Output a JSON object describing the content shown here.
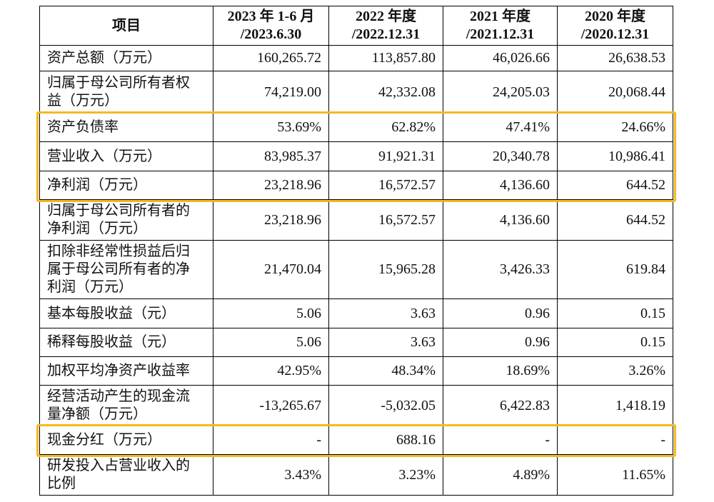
{
  "table": {
    "header": [
      [
        "项目"
      ],
      [
        "2023 年 1-6 月",
        "/2023.6.30"
      ],
      [
        "2022 年度",
        "/2022.12.31"
      ],
      [
        "2021 年度",
        "/2021.12.31"
      ],
      [
        "2020 年度",
        "/2020.12.31"
      ]
    ],
    "rows": [
      [
        "资产总额（万元）",
        "160,265.72",
        "113,857.80",
        "46,026.66",
        "26,638.53"
      ],
      [
        "归属于母公司所有者权益（万元）",
        "74,219.00",
        "42,332.08",
        "24,205.03",
        "20,068.44"
      ],
      [
        "资产负债率",
        "53.69%",
        "62.82%",
        "47.41%",
        "24.66%"
      ],
      [
        "营业收入（万元）",
        "83,985.37",
        "91,921.31",
        "20,340.78",
        "10,986.41"
      ],
      [
        "净利润（万元）",
        "23,218.96",
        "16,572.57",
        "4,136.60",
        "644.52"
      ],
      [
        "归属于母公司所有者的净利润（万元）",
        "23,218.96",
        "16,572.57",
        "4,136.60",
        "644.52"
      ],
      [
        "扣除非经常性损益后归属于母公司所有者的净利润（万元）",
        "21,470.04",
        "15,965.28",
        "3,426.33",
        "619.84"
      ],
      [
        "基本每股收益（元）",
        "5.06",
        "3.63",
        "0.96",
        "0.15"
      ],
      [
        "稀释每股收益（元）",
        "5.06",
        "3.63",
        "0.96",
        "0.15"
      ],
      [
        "加权平均净资产收益率",
        "42.95%",
        "48.34%",
        "18.69%",
        "3.26%"
      ],
      [
        "经营活动产生的现金流量净额（万元）",
        "-13,265.67",
        "-5,032.05",
        "6,422.83",
        "1,418.19"
      ],
      [
        "现金分红（万元）",
        "-",
        "688.16",
        "-",
        "-"
      ],
      [
        "研发投入占营业收入的比例",
        "3.43%",
        "3.23%",
        "4.89%",
        "11.65%"
      ]
    ]
  }
}
